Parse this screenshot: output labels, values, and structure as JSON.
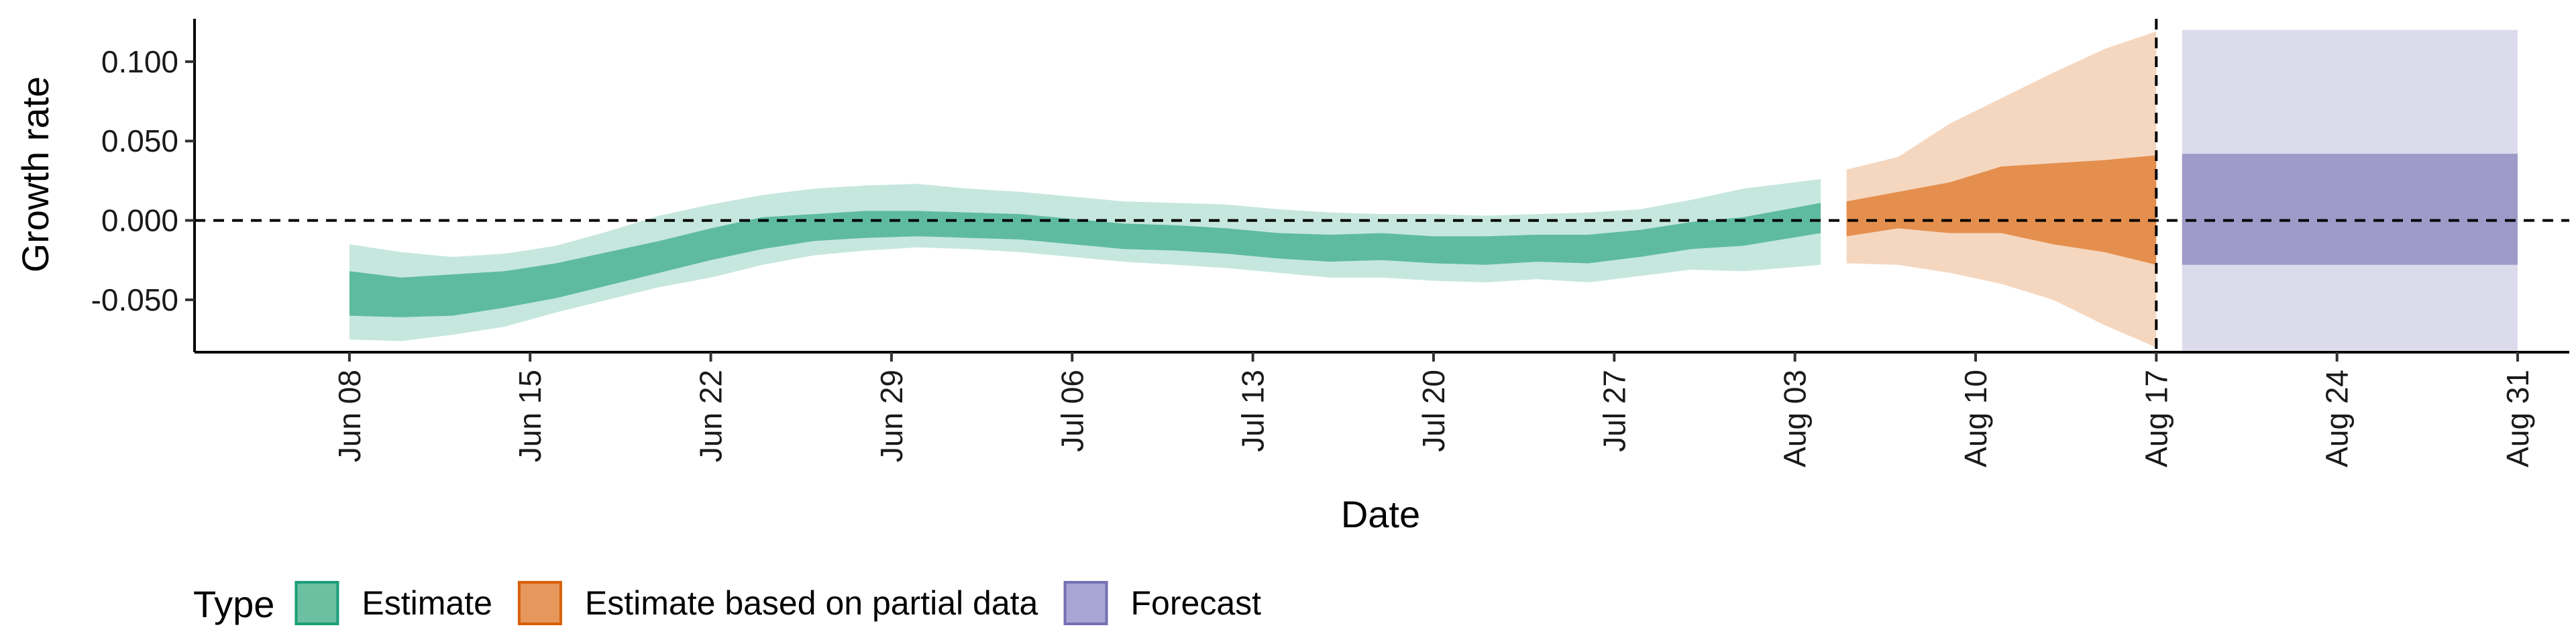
{
  "chart_data": {
    "type": "area",
    "title": "",
    "xlabel": "Date",
    "ylabel": "Growth rate",
    "x_range": [
      "2020-06-02",
      "2020-09-02"
    ],
    "ylim": [
      -0.083,
      0.127
    ],
    "yticks": [
      -0.05,
      0.0,
      0.05,
      0.1
    ],
    "ytick_labels": [
      "-0.050",
      "0.000",
      "0.050",
      "0.100"
    ],
    "xticks": [
      "2020-06-08",
      "2020-06-15",
      "2020-06-22",
      "2020-06-29",
      "2020-07-06",
      "2020-07-13",
      "2020-07-20",
      "2020-07-27",
      "2020-08-03",
      "2020-08-10",
      "2020-08-17",
      "2020-08-24",
      "2020-08-31"
    ],
    "xtick_labels": [
      "Jun 08",
      "Jun 15",
      "Jun 22",
      "Jun 29",
      "Jul 06",
      "Jul 13",
      "Jul 20",
      "Jul 27",
      "Aug 03",
      "Aug 10",
      "Aug 17",
      "Aug 24",
      "Aug 31"
    ],
    "grid": false,
    "reference_lines": {
      "horizontal_y": 0.0,
      "vertical_x": "2020-08-17",
      "style": "dashed"
    },
    "legend": {
      "title": "Type",
      "position": "bottom-left",
      "entries": [
        {
          "label": "Estimate",
          "fill": "#6cc0a1",
          "stroke": "#1b9e77"
        },
        {
          "label": "Estimate based on partial data",
          "fill": "#e6985c",
          "stroke": "#d95f02"
        },
        {
          "label": "Forecast",
          "fill": "#a9a5d4",
          "stroke": "#7570b3"
        }
      ]
    },
    "series": [
      {
        "name": "Estimate",
        "color": "#1b9e77",
        "x": [
          "2020-06-08",
          "2020-06-10",
          "2020-06-12",
          "2020-06-14",
          "2020-06-16",
          "2020-06-18",
          "2020-06-20",
          "2020-06-22",
          "2020-06-24",
          "2020-06-26",
          "2020-06-28",
          "2020-06-30",
          "2020-07-02",
          "2020-07-04",
          "2020-07-06",
          "2020-07-08",
          "2020-07-10",
          "2020-07-12",
          "2020-07-14",
          "2020-07-16",
          "2020-07-18",
          "2020-07-20",
          "2020-07-22",
          "2020-07-24",
          "2020-07-26",
          "2020-07-28",
          "2020-07-30",
          "2020-08-01",
          "2020-08-04"
        ],
        "inner_low": [
          -0.06,
          -0.061,
          -0.06,
          -0.055,
          -0.049,
          -0.041,
          -0.033,
          -0.025,
          -0.018,
          -0.013,
          -0.011,
          -0.01,
          -0.011,
          -0.012,
          -0.015,
          -0.018,
          -0.019,
          -0.021,
          -0.024,
          -0.026,
          -0.025,
          -0.027,
          -0.028,
          -0.026,
          -0.027,
          -0.023,
          -0.018,
          -0.016,
          -0.008
        ],
        "inner_high": [
          -0.032,
          -0.036,
          -0.034,
          -0.032,
          -0.027,
          -0.02,
          -0.013,
          -0.005,
          0.002,
          0.004,
          0.006,
          0.006,
          0.005,
          0.004,
          0.001,
          -0.002,
          -0.003,
          -0.005,
          -0.008,
          -0.009,
          -0.008,
          -0.01,
          -0.01,
          -0.009,
          -0.009,
          -0.006,
          -0.001,
          0.002,
          0.011
        ],
        "outer_low": [
          -0.075,
          -0.076,
          -0.072,
          -0.067,
          -0.058,
          -0.05,
          -0.042,
          -0.036,
          -0.028,
          -0.022,
          -0.019,
          -0.017,
          -0.018,
          -0.02,
          -0.023,
          -0.026,
          -0.028,
          -0.03,
          -0.033,
          -0.036,
          -0.036,
          -0.038,
          -0.039,
          -0.037,
          -0.039,
          -0.035,
          -0.031,
          -0.032,
          -0.028
        ],
        "outer_high": [
          -0.015,
          -0.02,
          -0.023,
          -0.021,
          -0.016,
          -0.007,
          0.003,
          0.01,
          0.016,
          0.02,
          0.022,
          0.023,
          0.02,
          0.018,
          0.015,
          0.012,
          0.011,
          0.01,
          0.007,
          0.005,
          0.004,
          0.004,
          0.003,
          0.004,
          0.005,
          0.007,
          0.013,
          0.02,
          0.026
        ]
      },
      {
        "name": "Estimate based on partial data",
        "color": "#d95f02",
        "x": [
          "2020-08-05",
          "2020-08-07",
          "2020-08-09",
          "2020-08-11",
          "2020-08-13",
          "2020-08-15",
          "2020-08-17"
        ],
        "inner_low": [
          -0.01,
          -0.005,
          -0.008,
          -0.008,
          -0.015,
          -0.02,
          -0.028
        ],
        "inner_high": [
          0.012,
          0.018,
          0.024,
          0.034,
          0.036,
          0.038,
          0.041
        ],
        "outer_low": [
          -0.027,
          -0.028,
          -0.033,
          -0.04,
          -0.05,
          -0.066,
          -0.08
        ],
        "outer_high": [
          0.032,
          0.04,
          0.061,
          0.077,
          0.093,
          0.108,
          0.119
        ]
      },
      {
        "name": "Forecast",
        "color": "#7570b3",
        "x": [
          "2020-08-18",
          "2020-08-31"
        ],
        "inner_low": [
          -0.028,
          -0.028
        ],
        "inner_high": [
          0.042,
          0.042
        ],
        "outer_low": [
          -0.082,
          -0.082
        ],
        "outer_high": [
          0.12,
          0.12
        ]
      }
    ]
  }
}
